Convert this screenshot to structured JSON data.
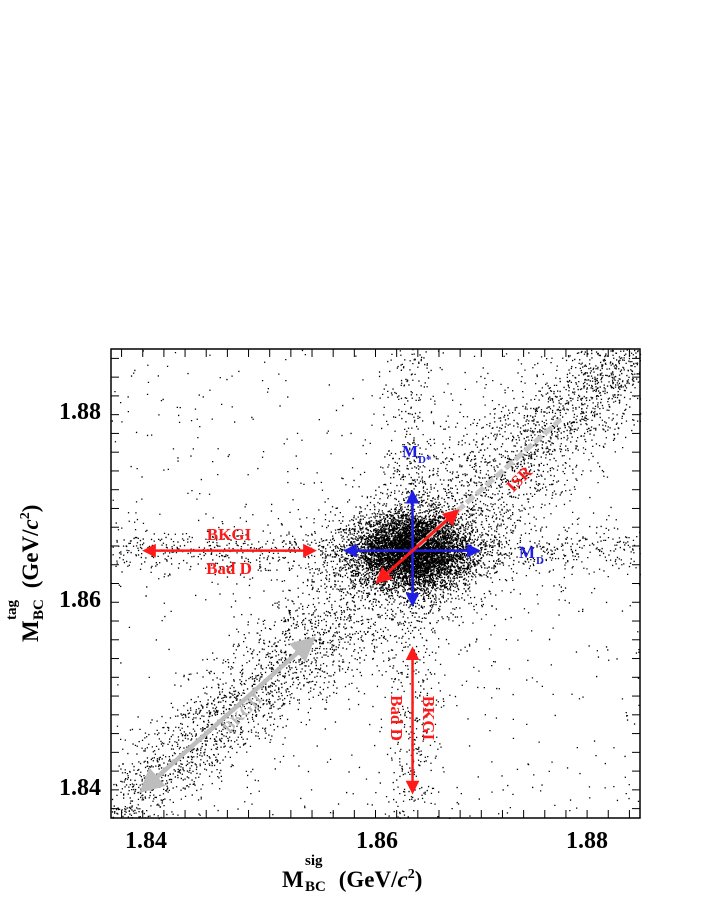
{
  "chart_data": {
    "type": "scatter",
    "xlabel": {
      "main": "M",
      "sup": "sig",
      "sub": "BC",
      "unit_open": " (GeV/",
      "unit_c": "c",
      "unit_sup": "2",
      "unit_close": ")"
    },
    "ylabel": {
      "main": "M",
      "sup": "tag",
      "sub": "BC",
      "unit_open": " (GeV/",
      "unit_c": "c",
      "unit_sup": "2",
      "unit_close": ")"
    },
    "xlim": [
      1.8365,
      1.8865
    ],
    "ylim": [
      1.8365,
      1.8865
    ],
    "x_ticks": [
      "1.84",
      "1.86",
      "1.88"
    ],
    "y_ticks": [
      "1.84",
      "1.86",
      "1.88"
    ],
    "grid": false,
    "distribution": {
      "peak": {
        "x": 1.865,
        "y": 1.865,
        "sigma": 0.0024
      },
      "diagonal_band": {
        "from": 1.8365,
        "to": 1.8865
      },
      "horizontal_band_y": 1.865,
      "vertical_band_x": 1.865
    },
    "annotations": {
      "md_star": {
        "main": "M",
        "sub": "D*",
        "color": "#1e1ee6"
      },
      "md": {
        "main": "M",
        "sub": "D",
        "color": "#1e1ee6"
      },
      "isr": {
        "text": "ISR",
        "color": "#ff1a1a"
      },
      "bkgi_h": "BKGI",
      "bad_d_h": "Bad D",
      "bkgi_v": "BKGI",
      "bad_d_v": "Bad D",
      "bkgii": {
        "text": "BKGII",
        "color": "#bdbdbd"
      }
    },
    "arrows": {
      "md_star_vertical": {
        "x": 1.865,
        "y_from": 1.8593,
        "y_to": 1.8712,
        "color": "#1e1ee6"
      },
      "md_horizontal": {
        "y": 1.865,
        "x_from": 1.8587,
        "x_to": 1.8712,
        "color": "#1e1ee6"
      },
      "isr_diagonal": {
        "from": [
          1.8617,
          1.8617
        ],
        "to": [
          1.8692,
          1.8692
        ],
        "color": "#ff1a1a"
      },
      "bkgi_horizontal": {
        "y": 1.865,
        "x_from": 1.8397,
        "x_to": 1.8557,
        "color": "#ff1a1a"
      },
      "bkgi_vertical": {
        "x": 1.865,
        "y_from": 1.8393,
        "y_to": 1.8545,
        "color": "#ff1a1a"
      },
      "bkgii_diagonal": {
        "from": [
          1.8395,
          1.8395
        ],
        "to": [
          1.8555,
          1.8555
        ],
        "color": "#bdbdbd"
      },
      "isr_band_extension": {
        "from": [
          1.8655,
          1.8655
        ],
        "to": [
          1.879,
          1.879
        ],
        "color": "#c8c8c8"
      }
    }
  }
}
